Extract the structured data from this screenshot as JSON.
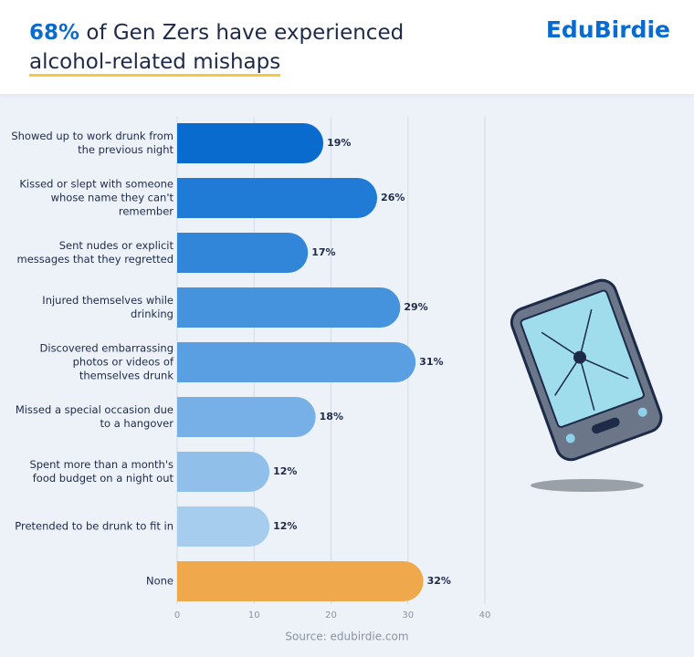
{
  "header": {
    "title_highlight": "68%",
    "title_rest": "of Gen Zers have experienced",
    "title_line2": "alcohol-related mishaps",
    "brand": "EduBirdie"
  },
  "chart_data": {
    "type": "bar",
    "orientation": "horizontal",
    "categories": [
      "Showed up to work drunk from the previous night",
      "Kissed or slept with someone whose name they can't remember",
      "Sent nudes or explicit messages that they regretted",
      "Injured themselves while drinking",
      "Discovered embarrassing photos or videos of themselves drunk",
      "Missed a special occasion due to a hangover",
      "Spent more than a month's food budget on a night out",
      "Pretended to be drunk to fit in",
      "None"
    ],
    "values": [
      19,
      26,
      17,
      29,
      31,
      18,
      12,
      12,
      32
    ],
    "value_labels": [
      "19%",
      "26%",
      "17%",
      "29%",
      "31%",
      "18%",
      "12%",
      "12%",
      "32%"
    ],
    "colors": [
      "#0a6bcf",
      "#1f7bd6",
      "#3286da",
      "#4592dd",
      "#5a9fe1",
      "#77b0e6",
      "#90bfea",
      "#a6ccee",
      "#f0a84c"
    ],
    "xlim": [
      0,
      40
    ],
    "xticks": [
      0,
      10,
      20,
      30,
      40
    ],
    "grid": true,
    "source": "Source: edubirdie.com"
  }
}
